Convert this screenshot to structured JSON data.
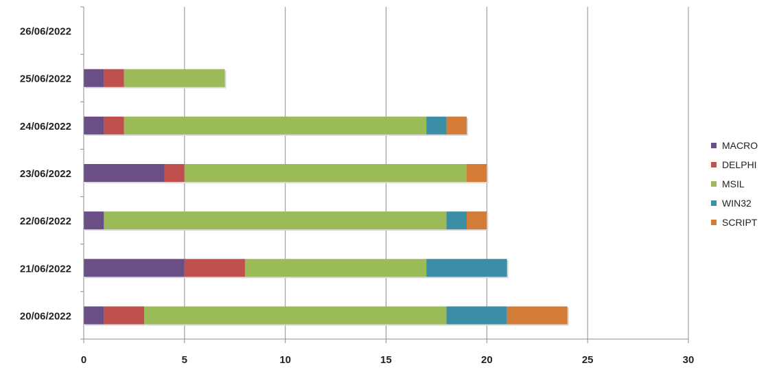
{
  "chart_data": {
    "type": "bar",
    "orientation": "horizontal",
    "stacked": true,
    "title": "",
    "xlabel": "",
    "ylabel": "",
    "xlim": [
      0,
      30
    ],
    "x_ticks": [
      0,
      5,
      10,
      15,
      20,
      25,
      30
    ],
    "grid": "vertical",
    "legend_position": "right",
    "categories": [
      "20/06/2022",
      "21/06/2022",
      "22/06/2022",
      "23/06/2022",
      "24/06/2022",
      "25/06/2022",
      "26/06/2022"
    ],
    "series": [
      {
        "name": "MACRO",
        "color": "#6a4f86",
        "values": [
          1,
          5,
          1,
          4,
          1,
          1,
          0
        ]
      },
      {
        "name": "DELPHI",
        "color": "#c0504d",
        "values": [
          2,
          3,
          0,
          1,
          1,
          1,
          0
        ]
      },
      {
        "name": "MSIL",
        "color": "#9bbb59",
        "values": [
          15,
          9,
          17,
          14,
          15,
          5,
          0
        ]
      },
      {
        "name": "WIN32",
        "color": "#3b8ea5",
        "values": [
          3,
          4,
          1,
          0,
          1,
          0,
          0
        ]
      },
      {
        "name": "SCRIPT",
        "color": "#d27c38",
        "values": [
          3,
          0,
          1,
          1,
          1,
          0,
          0
        ]
      }
    ]
  }
}
